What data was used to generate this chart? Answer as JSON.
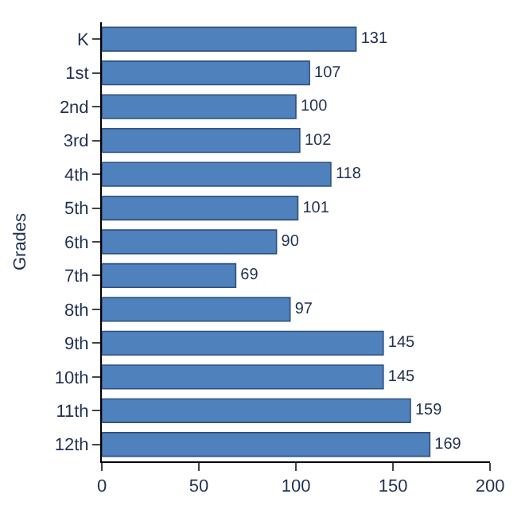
{
  "chart_data": {
    "type": "bar",
    "orientation": "horizontal",
    "ylabel": "Grades",
    "categories": [
      "K",
      "1st",
      "2nd",
      "3rd",
      "4th",
      "5th",
      "6th",
      "7th",
      "8th",
      "9th",
      "10th",
      "11th",
      "12th"
    ],
    "values": [
      131,
      107,
      100,
      102,
      118,
      101,
      90,
      69,
      97,
      145,
      145,
      159,
      169
    ],
    "color": "#4f81bd",
    "xlim": [
      0,
      200
    ],
    "xticks": [
      0,
      50,
      100,
      150,
      200
    ],
    "data_labels": true
  }
}
